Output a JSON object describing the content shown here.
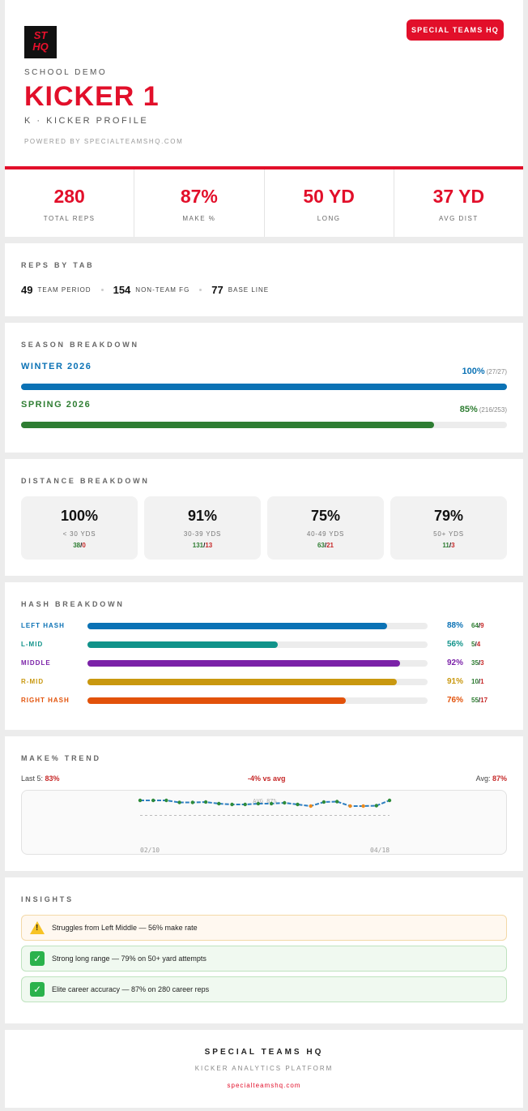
{
  "header": {
    "logo_text_top": "ST",
    "logo_text_bottom": "HQ",
    "brand_button": "SPECIAL TEAMS HQ",
    "school": "SCHOOL DEMO",
    "player_name": "KICKER 1",
    "position": "K · KICKER PROFILE",
    "powered_by": "POWERED BY SPECIALTEAMSHQ.COM"
  },
  "stats": [
    {
      "value": "280",
      "label": "TOTAL REPS"
    },
    {
      "value": "87%",
      "label": "MAKE %"
    },
    {
      "value": "50 YD",
      "label": "LONG"
    },
    {
      "value": "37 YD",
      "label": "AVG DIST"
    }
  ],
  "reps_by_tab": {
    "title": "REPS BY TAB",
    "items": [
      {
        "count": "49",
        "label": "TEAM PERIOD"
      },
      {
        "count": "154",
        "label": "NON-TEAM FG"
      },
      {
        "count": "77",
        "label": "BASE LINE"
      }
    ]
  },
  "season": {
    "title": "SEASON BREAKDOWN",
    "items": [
      {
        "name": "WINTER 2026",
        "pct": "100%",
        "detail": "(27/27)",
        "fraction": 1.0,
        "color": "#0b72b5"
      },
      {
        "name": "SPRING 2026",
        "pct": "85%",
        "detail": "(216/253)",
        "fraction": 0.85,
        "color": "#2e7d32"
      }
    ]
  },
  "distance": {
    "title": "DISTANCE BREAKDOWN",
    "items": [
      {
        "pct": "100%",
        "range": "< 30 YDS",
        "made": "38",
        "missed": "0"
      },
      {
        "pct": "91%",
        "range": "30-39 YDS",
        "made": "131",
        "missed": "13"
      },
      {
        "pct": "75%",
        "range": "40-49 YDS",
        "made": "63",
        "missed": "21"
      },
      {
        "pct": "79%",
        "range": "50+ YDS",
        "made": "11",
        "missed": "3"
      }
    ]
  },
  "hash": {
    "title": "HASH BREAKDOWN",
    "items": [
      {
        "name": "LEFT HASH",
        "pct": "88%",
        "fraction": 0.88,
        "made": "64",
        "missed": "9",
        "color": "#0b72b5"
      },
      {
        "name": "L-MID",
        "pct": "56%",
        "fraction": 0.56,
        "made": "5",
        "missed": "4",
        "color": "#11938a"
      },
      {
        "name": "MIDDLE",
        "pct": "92%",
        "fraction": 0.92,
        "made": "35",
        "missed": "3",
        "color": "#7b22a8"
      },
      {
        "name": "R-MID",
        "pct": "91%",
        "fraction": 0.91,
        "made": "10",
        "missed": "1",
        "color": "#c9980f"
      },
      {
        "name": "RIGHT HASH",
        "pct": "76%",
        "fraction": 0.76,
        "made": "55",
        "missed": "17",
        "color": "#e2520a"
      }
    ]
  },
  "trend": {
    "title": "MAKE% TREND",
    "last5_label": "Last 5:",
    "last5_value": "83%",
    "vs_avg": "-4% vs avg",
    "avg_label": "Avg:",
    "avg_value": "87%",
    "avg_line_label": "AVG 87%",
    "x_labels": [
      "02/10",
      "04/18"
    ]
  },
  "chart_data": {
    "type": "line",
    "series": [
      {
        "values": [
          100,
          100,
          100,
          95,
          95,
          96,
          92,
          90,
          90,
          92,
          92,
          94,
          90,
          86,
          96,
          97,
          86,
          86,
          87,
          100
        ]
      }
    ],
    "point_status": [
      "good",
      "good",
      "good",
      "good",
      "good",
      "good",
      "good",
      "good",
      "good",
      "good",
      "good",
      "good",
      "good",
      "warn",
      "good",
      "good",
      "warn",
      "warn",
      "good",
      "good"
    ],
    "ylim": [
      0,
      100
    ],
    "avg": 87,
    "colors": {
      "line": "#2d7fc1",
      "good": "#2e8b3a",
      "warn": "#ef8a1a",
      "avg": "#bbbbbb"
    }
  },
  "insights": {
    "title": "INSIGHTS",
    "items": [
      {
        "type": "warn",
        "icon": "warning-icon",
        "text": "Struggles from Left Middle — 56% make rate"
      },
      {
        "type": "ok",
        "icon": "check-icon",
        "text": "Strong long range — 79% on 50+ yard attempts"
      },
      {
        "type": "ok",
        "icon": "check-icon",
        "text": "Elite career accuracy — 87% on 280 career reps"
      }
    ]
  },
  "footer": {
    "brand": "SPECIAL TEAMS HQ",
    "tagline": "KICKER ANALYTICS PLATFORM",
    "link": "specialteamshq.com"
  }
}
